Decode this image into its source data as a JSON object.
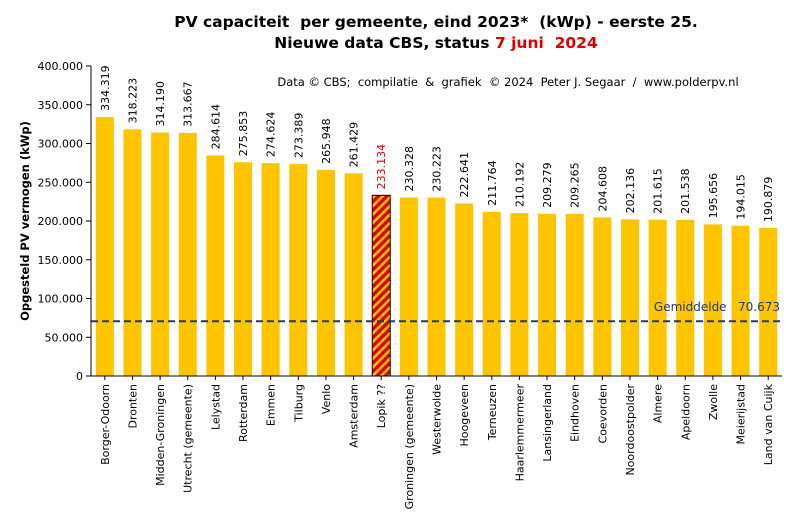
{
  "title": {
    "line1": "PV capaciteit  per gemeente, eind 2023*  (kWp) - eerste 25.",
    "line2_prefix": "Nieuwe data CBS, status ",
    "line2_highlight": "7 juni  2024"
  },
  "colors": {
    "bar": "#ffc400",
    "highlight_bar": "#dd0000",
    "highlight_stripe": "#ffc400",
    "highlight_label": "#dd0000",
    "average_line": "#1f3a6e",
    "title_highlight": "#dd0000"
  },
  "chart_data": {
    "type": "bar",
    "title": "PV capaciteit  per gemeente, eind 2023*  (kWp) - eerste 25. Nieuwe data CBS, status 7 juni  2024",
    "ylabel": "Opgesteld PV vermogen (kWp)",
    "xlabel": "",
    "ylim": [
      0,
      400000
    ],
    "ytick_step": 50000,
    "ytick_labels": [
      "0",
      "50.000",
      "100.000",
      "150.000",
      "200.000",
      "250.000",
      "300.000",
      "350.000",
      "400.000"
    ],
    "grid": false,
    "categories": [
      "Borger-Odoorn",
      "Dronten",
      "Midden-Groningen",
      "Utrecht (gemeente)",
      "Lelystad",
      "Rotterdam",
      "Emmen",
      "Tilburg",
      "Venlo",
      "Amsterdam",
      "Lopik ??",
      "Groningen (gemeente)",
      "Westerwolde",
      "Hoogeveen",
      "Terneuzen",
      "Haarlemmermeer",
      "Lansingerland",
      "Eindhoven",
      "Coevorden",
      "Noordoostpolder",
      "Almere",
      "Apeldoorn",
      "Zwolle",
      "Meierijstad",
      "Land van Cuijk"
    ],
    "values": [
      334319,
      318223,
      314190,
      313667,
      284614,
      275853,
      274624,
      273389,
      265948,
      261429,
      233134,
      230328,
      230223,
      222641,
      211764,
      210192,
      209279,
      209265,
      204608,
      202136,
      201615,
      201538,
      195656,
      194015,
      190879
    ],
    "value_labels": [
      "334.319",
      "318.223",
      "314.190",
      "313.667",
      "284.614",
      "275.853",
      "274.624",
      "273.389",
      "265.948",
      "261.429",
      "233.134",
      "230.328",
      "230.223",
      "222.641",
      "211.764",
      "210.192",
      "209.279",
      "209.265",
      "204.608",
      "202.136",
      "201.615",
      "201.538",
      "195.656",
      "194.015",
      "190.879"
    ],
    "highlight_index": 10,
    "average": {
      "label": "Gemiddelde   70.673",
      "value": 70673
    },
    "annotation": "Data © CBS;  compilatie  &  grafiek  © 2024  Peter J. Segaar  /  www.polderpv.nl"
  }
}
